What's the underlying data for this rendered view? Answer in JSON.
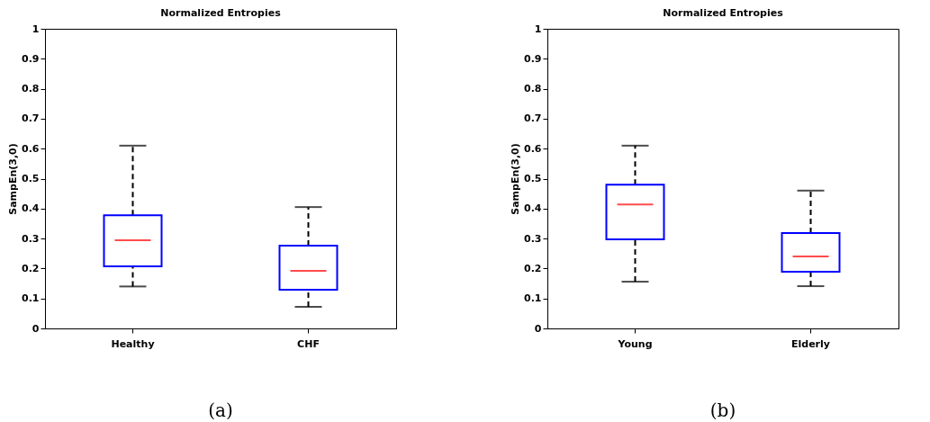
{
  "chart_data": [
    {
      "type": "box",
      "title": "Normalized Entropies",
      "ylabel": "SampEn(3,0)",
      "categories": [
        "Healthy",
        "CHF"
      ],
      "ylim": [
        0,
        1
      ],
      "yticks": [
        0,
        0.1,
        0.2,
        0.3,
        0.4,
        0.5,
        0.6,
        0.7,
        0.8,
        0.9,
        1
      ],
      "grid": false,
      "annotations": [
        "(a)"
      ],
      "series": [
        {
          "color": "#0000ff",
          "boxes": [
            {
              "low": 0.14,
              "q1": 0.207,
              "median": 0.294,
              "q3": 0.378,
              "high": 0.61
            },
            {
              "low": 0.072,
              "q1": 0.129,
              "median": 0.192,
              "q3": 0.276,
              "high": 0.405
            }
          ]
        }
      ]
    },
    {
      "type": "box",
      "title": "Normalized Entropies",
      "ylabel": "SampEn(3,0)",
      "categories": [
        "Young",
        "Elderly"
      ],
      "ylim": [
        0,
        1
      ],
      "yticks": [
        0,
        0.1,
        0.2,
        0.3,
        0.4,
        0.5,
        0.6,
        0.7,
        0.8,
        0.9,
        1
      ],
      "grid": false,
      "annotations": [
        "(b)"
      ],
      "series": [
        {
          "color": "#0000ff",
          "boxes": [
            {
              "low": 0.156,
              "q1": 0.297,
              "median": 0.414,
              "q3": 0.48,
              "high": 0.61
            },
            {
              "low": 0.141,
              "q1": 0.189,
              "median": 0.24,
              "q3": 0.318,
              "high": 0.46
            }
          ]
        }
      ]
    }
  ]
}
